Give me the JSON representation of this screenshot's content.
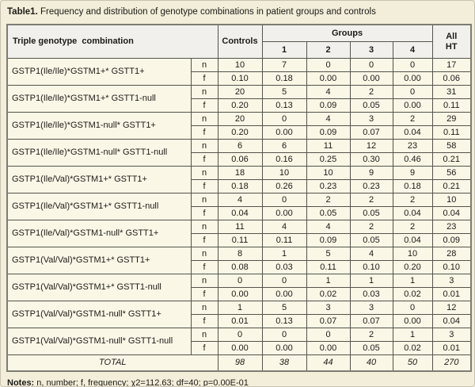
{
  "title": {
    "label": "Table1.",
    "text": "Frequency and distribution of genotype combinations in patient groups and controls"
  },
  "table": {
    "header": {
      "genotype_col": "Triple genotype  combination",
      "controls": "Controls",
      "groups": "Groups",
      "group_numbers": [
        "1",
        "2",
        "3",
        "4"
      ],
      "all_ht": "All\nHT"
    },
    "stat_labels": {
      "n": "n",
      "f": "f"
    },
    "rows": [
      {
        "label": "GSTP1(Ile/Ile)*GSTM1+* GSTT1+",
        "n": [
          "10",
          "7",
          "0",
          "0",
          "0",
          "17"
        ],
        "f": [
          "0.10",
          "0.18",
          "0.00",
          "0.00",
          "0.00",
          "0.06"
        ]
      },
      {
        "label": "GSTP1(Ile/Ile)*GSTM1+* GSTT1-null",
        "n": [
          "20",
          "5",
          "4",
          "2",
          "0",
          "31"
        ],
        "f": [
          "0.20",
          "0.13",
          "0.09",
          "0.05",
          "0.00",
          "0.11"
        ]
      },
      {
        "label": "GSTP1(Ile/Ile)*GSTM1-null* GSTT1+",
        "n": [
          "20",
          "0",
          "4",
          "3",
          "2",
          "29"
        ],
        "f": [
          "0.20",
          "0.00",
          "0.09",
          "0.07",
          "0.04",
          "0.11"
        ]
      },
      {
        "label": "GSTP1(Ile/Ile)*GSTM1-null* GSTT1-null",
        "n": [
          "6",
          "6",
          "11",
          "12",
          "23",
          "58"
        ],
        "f": [
          "0.06",
          "0.16",
          "0.25",
          "0.30",
          "0.46",
          "0.21"
        ]
      },
      {
        "label": "GSTP1(Ile/Val)*GSTM1+* GSTT1+",
        "n": [
          "18",
          "10",
          "10",
          "9",
          "9",
          "56"
        ],
        "f": [
          "0.18",
          "0.26",
          "0.23",
          "0.23",
          "0.18",
          "0.21"
        ]
      },
      {
        "label": "GSTP1(Ile/Val)*GSTM1+* GSTT1-null",
        "n": [
          "4",
          "0",
          "2",
          "2",
          "2",
          "10"
        ],
        "f": [
          "0.04",
          "0.00",
          "0.05",
          "0.05",
          "0.04",
          "0.04"
        ]
      },
      {
        "label": "GSTP1(Ile/Val)*GSTM1-null* GSTT1+",
        "n": [
          "11",
          "4",
          "4",
          "2",
          "2",
          "23"
        ],
        "f": [
          "0.11",
          "0.11",
          "0.09",
          "0.05",
          "0.04",
          "0.09"
        ]
      },
      {
        "label": "GSTP1(Val/Val)*GSTM1+* GSTT1+",
        "n": [
          "8",
          "1",
          "5",
          "4",
          "10",
          "28"
        ],
        "f": [
          "0.08",
          "0.03",
          "0.11",
          "0.10",
          "0.20",
          "0.10"
        ]
      },
      {
        "label": "GSTP1(Val/Val)*GSTM1+* GSTT1-null",
        "n": [
          "0",
          "0",
          "1",
          "1",
          "1",
          "3"
        ],
        "f": [
          "0.00",
          "0.00",
          "0.02",
          "0.03",
          "0.02",
          "0.01"
        ]
      },
      {
        "label": "GSTP1(Val/Val)*GSTM1-null* GSTT1+",
        "n": [
          "1",
          "5",
          "3",
          "3",
          "0",
          "12"
        ],
        "f": [
          "0.01",
          "0.13",
          "0.07",
          "0.07",
          "0.00",
          "0.04"
        ]
      },
      {
        "label": "GSTP1(Val/Val)*GSTM1-null* GSTT1-null",
        "n": [
          "0",
          "0",
          "0",
          "2",
          "1",
          "3"
        ],
        "f": [
          "0.00",
          "0.00",
          "0.00",
          "0.05",
          "0.02",
          "0.01"
        ]
      }
    ],
    "total": {
      "label": "TOTAL",
      "values": [
        "98",
        "38",
        "44",
        "40",
        "50",
        "270"
      ]
    }
  },
  "notes": {
    "label": "Notes:",
    "text": "n, number; f, frequency; χ2=112.63; df=40; p=0.00E-01"
  },
  "colors": {
    "page_bg": "#f3eeda",
    "cell_bg": "#fbf7e7",
    "header_bg": "#f1f0ec",
    "border": "#54534b"
  }
}
